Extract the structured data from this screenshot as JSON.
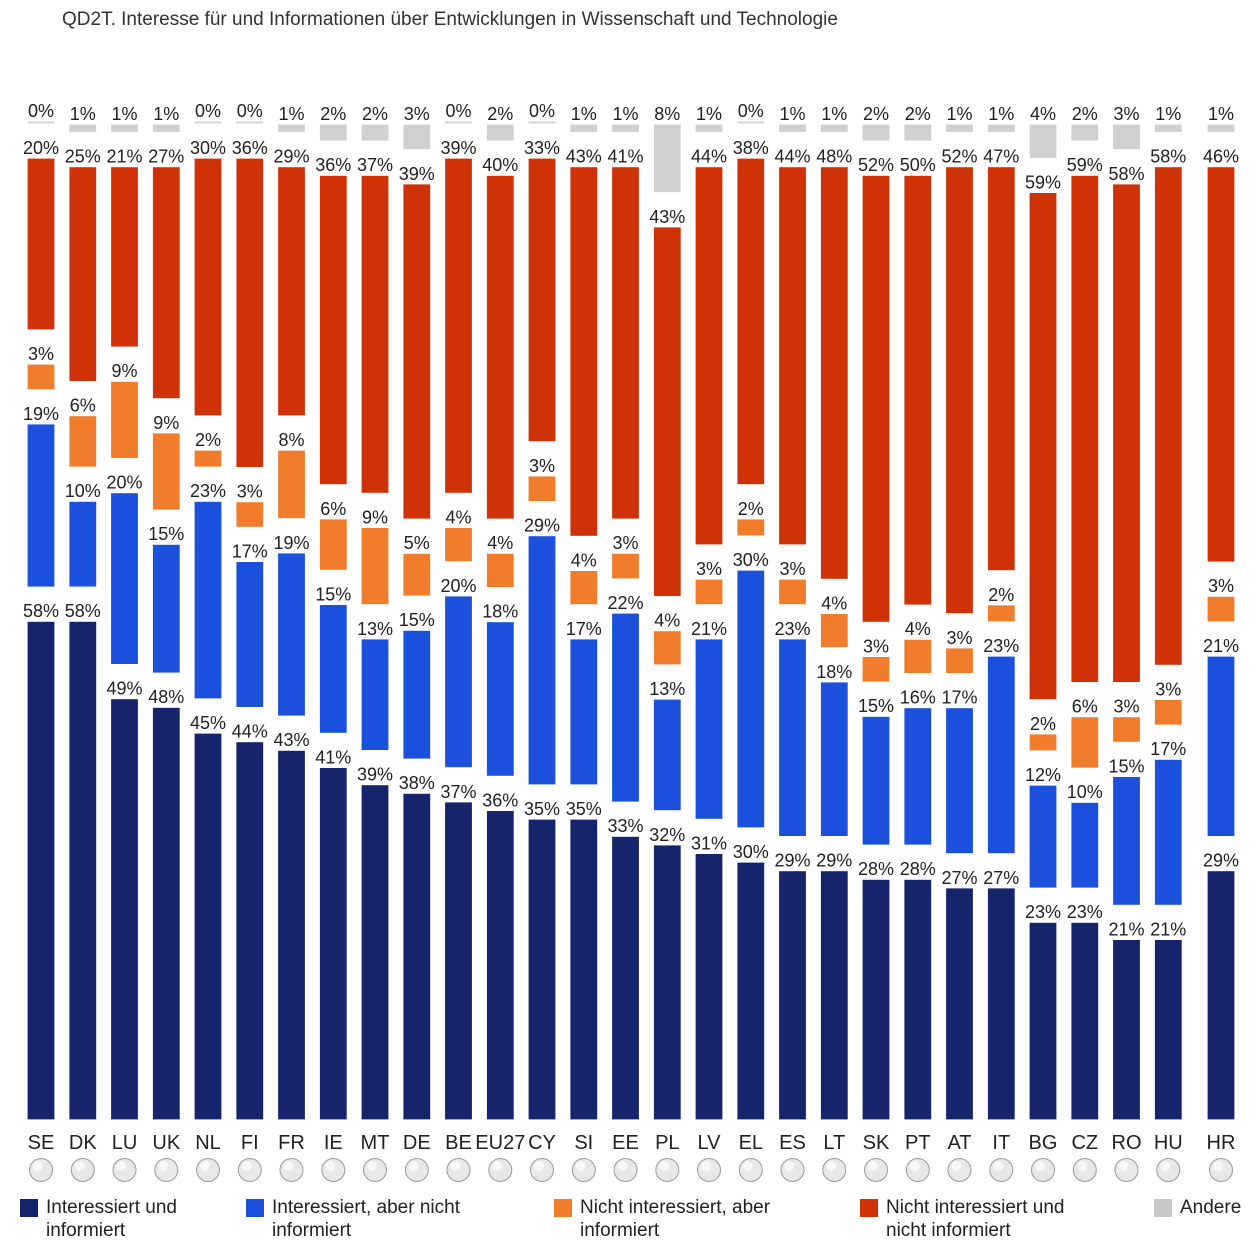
{
  "title": "QD2T. Interesse für und Informationen über Entwicklungen in Wissenschaft und Technologie",
  "colors": {
    "interessiert_informiert": "#16246b",
    "interessiert_nicht_informiert": "#1a50dc",
    "nicht_interessiert_informiert": "#f07c2c",
    "nicht_interessiert_nicht_informiert": "#cf3206",
    "andere": "#c8c8c8"
  },
  "legend": [
    {
      "key": "interessiert_informiert",
      "label": "Interessiert und\ninformiert",
      "icon": "dark-blue-square"
    },
    {
      "key": "interessiert_nicht_informiert",
      "label": "Interessiert, aber nicht\ninformiert",
      "icon": "blue-square"
    },
    {
      "key": "nicht_interessiert_informiert",
      "label": "Nicht interessiert, aber\ninformiert",
      "icon": "orange-square"
    },
    {
      "key": "nicht_interessiert_nicht_informiert",
      "label": "Nicht interessiert und\nnicht informiert",
      "icon": "red-square"
    },
    {
      "key": "andere",
      "label": "Andere",
      "icon": "grey-square"
    }
  ],
  "chart_data": {
    "type": "bar",
    "stacked": true,
    "title": "QD2T. Interesse für und Informationen über Entwicklungen in Wissenschaft und Technologie",
    "unit": "%",
    "categories": [
      "SE",
      "DK",
      "LU",
      "UK",
      "NL",
      "FI",
      "FR",
      "IE",
      "MT",
      "DE",
      "BE",
      "EU27",
      "CY",
      "SI",
      "EE",
      "PL",
      "LV",
      "EL",
      "ES",
      "LT",
      "SK",
      "PT",
      "AT",
      "IT",
      "BG",
      "CZ",
      "RO",
      "HU",
      "HR"
    ],
    "flags": [
      "flag-se",
      "flag-dk",
      "flag-lu",
      "flag-uk",
      "flag-nl",
      "flag-fi",
      "flag-fr",
      "flag-ie",
      "flag-mt",
      "flag-de",
      "flag-be",
      "flag-eu",
      "flag-cy",
      "flag-si",
      "flag-ee",
      "flag-pl",
      "flag-lv",
      "flag-el",
      "flag-es",
      "flag-lt",
      "flag-sk",
      "flag-pt",
      "flag-at",
      "flag-it",
      "flag-bg",
      "flag-cz",
      "flag-ro",
      "flag-hu",
      "flag-hr"
    ],
    "series": [
      {
        "name": "Interessiert und informiert",
        "values": [
          58,
          58,
          49,
          48,
          45,
          44,
          43,
          41,
          39,
          38,
          37,
          36,
          35,
          35,
          33,
          32,
          31,
          30,
          29,
          29,
          28,
          28,
          27,
          27,
          23,
          23,
          21,
          21,
          29
        ]
      },
      {
        "name": "Interessiert, aber nicht informiert",
        "values": [
          19,
          10,
          20,
          15,
          23,
          17,
          19,
          15,
          13,
          15,
          20,
          18,
          29,
          17,
          22,
          13,
          21,
          30,
          23,
          18,
          15,
          16,
          17,
          23,
          12,
          10,
          15,
          17,
          21
        ]
      },
      {
        "name": "Nicht interessiert, aber informiert",
        "values": [
          3,
          6,
          9,
          9,
          2,
          3,
          8,
          6,
          9,
          5,
          4,
          4,
          3,
          4,
          3,
          4,
          3,
          2,
          3,
          4,
          3,
          4,
          3,
          2,
          2,
          6,
          3,
          3,
          3
        ]
      },
      {
        "name": "Nicht interessiert und nicht informiert",
        "values": [
          20,
          25,
          21,
          27,
          30,
          36,
          29,
          36,
          37,
          39,
          39,
          40,
          33,
          43,
          41,
          43,
          44,
          38,
          44,
          48,
          52,
          50,
          52,
          47,
          59,
          59,
          58,
          58,
          46
        ]
      },
      {
        "name": "Andere",
        "values": [
          0,
          1,
          1,
          1,
          0,
          0,
          1,
          2,
          2,
          3,
          0,
          2,
          0,
          1,
          1,
          8,
          1,
          0,
          1,
          1,
          2,
          2,
          1,
          1,
          4,
          2,
          3,
          1,
          1
        ]
      }
    ],
    "legend_position": "bottom",
    "grid": false
  }
}
